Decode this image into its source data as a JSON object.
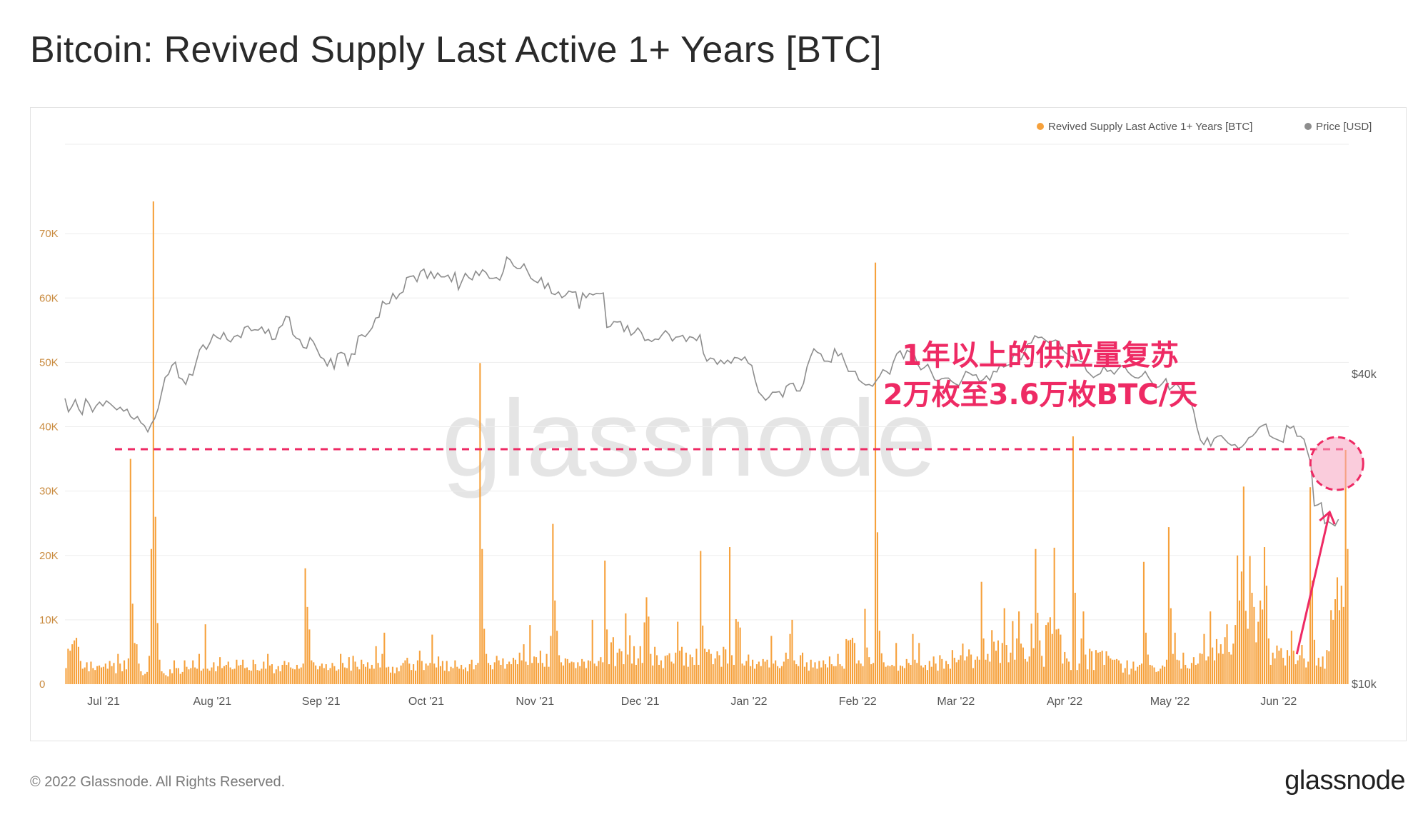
{
  "title": "Bitcoin: Revived Supply Last Active 1+ Years [BTC]",
  "footer": {
    "copyright": "© 2022 Glassnode. All Rights Reserved.",
    "logo": "glassnode"
  },
  "watermark": "glassnode",
  "annotation": {
    "line1": "1年以上的供应量复苏",
    "line2": "2万枚至3.6万枚BTC/天",
    "color": "#ee2a64",
    "threshold_btc": 36500,
    "marker_date": "2022-06-18"
  },
  "colors": {
    "supply": "#f6a13c",
    "price": "#8d8d8d",
    "axis_left": "#c98a3e",
    "axis_right": "#555555",
    "grid": "#ededed",
    "annotation": "#ee2a64"
  },
  "chart_data": {
    "type": "bar",
    "start_date": "2021-06-20",
    "end_date": "2022-06-21",
    "legend_position": "top-right",
    "grid": true,
    "legend": [
      {
        "label": "Revived Supply Last Active 1+ Years [BTC]",
        "color": "#f6a13c"
      },
      {
        "label": "Price [USD]",
        "color": "#8d8d8d"
      }
    ],
    "y_left": {
      "min": 0,
      "max": 80000,
      "ticks": [
        "0",
        "10K",
        "20K",
        "30K",
        "40K",
        "50K",
        "60K",
        "70K"
      ],
      "tick_values": [
        0,
        10000,
        20000,
        30000,
        40000,
        50000,
        60000,
        70000
      ]
    },
    "y_right": {
      "scale": "log",
      "min": 10000,
      "max": 100000,
      "ticks": [
        "$10k",
        "$40k"
      ],
      "tick_values": [
        10000,
        40000
      ]
    },
    "x_ticks": [
      {
        "label": "Jul '21",
        "date": "2021-07-01"
      },
      {
        "label": "Aug '21",
        "date": "2021-08-01"
      },
      {
        "label": "Sep '21",
        "date": "2021-09-01"
      },
      {
        "label": "Oct '21",
        "date": "2021-10-01"
      },
      {
        "label": "Nov '21",
        "date": "2021-11-01"
      },
      {
        "label": "Dec '21",
        "date": "2021-12-01"
      },
      {
        "label": "Jan '22",
        "date": "2022-01-01"
      },
      {
        "label": "Feb '22",
        "date": "2022-02-01"
      },
      {
        "label": "Mar '22",
        "date": "2022-03-01"
      },
      {
        "label": "Apr '22",
        "date": "2022-04-01"
      },
      {
        "label": "May '22",
        "date": "2022-05-01"
      },
      {
        "label": "Jun '22",
        "date": "2022-06-01"
      }
    ],
    "series": [
      {
        "name": "Revived Supply Last Active 1+ Years [BTC]",
        "values": [
          2500,
          5500,
          5200,
          6200,
          6800,
          7200,
          5800,
          3600,
          2400,
          2600,
          3400,
          2000,
          3500,
          2500,
          2200,
          2800,
          2900,
          2600,
          2700,
          3200,
          2400,
          3600,
          2800,
          3300,
          1700,
          4700,
          3200,
          2000,
          3700,
          2300,
          4000,
          35000,
          12500,
          6400,
          6200,
          3200,
          2000,
          1400,
          1600,
          1900,
          4400,
          21000,
          75000,
          26000,
          9500,
          3800,
          2000,
          1700,
          1400,
          1200,
          2300,
          1700,
          3700,
          2500,
          2500,
          1600,
          1900,
          3700,
          2700,
          2300,
          2500,
          3700,
          2600,
          2400,
          4700,
          2100,
          2400,
          9300,
          2400,
          2100,
          2600,
          3400,
          2000,
          2800,
          4200,
          2500,
          2800,
          3000,
          3500,
          2600,
          2300,
          2400,
          3800,
          2900,
          3000,
          3800,
          2500,
          2600,
          2200,
          2100,
          3800,
          3100,
          2200,
          2100,
          2400,
          3500,
          2400,
          4700,
          2900,
          3100,
          1700,
          2300,
          2800,
          2000,
          3000,
          3600,
          3000,
          3400,
          2600,
          2400,
          2300,
          3000,
          2400,
          2600,
          3200,
          18000,
          12000,
          8500,
          3700,
          3400,
          2900,
          2300,
          2800,
          3200,
          2500,
          3100,
          2200,
          2500,
          3300,
          2800,
          2100,
          2300,
          4700,
          3300,
          2600,
          2500,
          4200,
          2100,
          4400,
          3500,
          2700,
          2300,
          3800,
          3100,
          2700,
          3400,
          2400,
          3000,
          2400,
          5900,
          3300,
          2600,
          4700,
          8000,
          2600,
          2700,
          1800,
          2700,
          1700,
          2600,
          2000,
          2900,
          3300,
          3700,
          4100,
          3200,
          2200,
          3100,
          2100,
          3700,
          5200,
          3600,
          2200,
          3200,
          2900,
          3300,
          7700,
          3200,
          2600,
          4300,
          2800,
          3600,
          2100,
          3600,
          2000,
          2700,
          2500,
          3700,
          2700,
          2400,
          3000,
          2300,
          2600,
          2000,
          3100,
          3800,
          2300,
          3000,
          3300,
          49900,
          21000,
          8600,
          4700,
          3300,
          3000,
          2300,
          3400,
          4400,
          3700,
          3000,
          4000,
          2400,
          3100,
          3500,
          3100,
          4100,
          3800,
          3100,
          4900,
          3700,
          6200,
          3500,
          3000,
          9200,
          3300,
          4300,
          4200,
          3300,
          5200,
          3300,
          2700,
          4700,
          2700,
          7500,
          24900,
          13000,
          8300,
          4500,
          3400,
          2900,
          4000,
          3900,
          3300,
          3500,
          3400,
          2500,
          3400,
          2800,
          3900,
          3500,
          2500,
          3700,
          3600,
          10000,
          3200,
          2800,
          3600,
          4200,
          3400,
          19200,
          8500,
          3100,
          6500,
          7300,
          2800,
          4900,
          5500,
          5100,
          3100,
          11000,
          4600,
          7600,
          3200,
          5900,
          3000,
          4000,
          5900,
          3300,
          9600,
          13500,
          10500,
          4700,
          2900,
          5800,
          4500,
          3000,
          3700,
          2500,
          4400,
          4500,
          4800,
          3500,
          3200,
          4900,
          9700,
          5200,
          5800,
          2900,
          4900,
          2700,
          4600,
          4200,
          3000,
          5500,
          3000,
          20700,
          9100,
          5500,
          5000,
          5400,
          4700,
          3100,
          4000,
          5100,
          4500,
          2700,
          5800,
          5400,
          3200,
          21300,
          4500,
          3000,
          10100,
          9700,
          8800,
          3200,
          2900,
          3600,
          4600,
          2800,
          3800,
          2400,
          3100,
          3500,
          2800,
          3900,
          3500,
          3800,
          2600,
          7500,
          3200,
          3700,
          2800,
          2500,
          2800,
          3500,
          4900,
          3900,
          7800,
          10000,
          3700,
          3100,
          2800,
          4500,
          4900,
          2700,
          3400,
          2100,
          3800,
          2600,
          3400,
          2400,
          3600,
          2600,
          3700,
          3100,
          2600,
          4300,
          3100,
          2800,
          2800,
          4700,
          3100,
          2800,
          2400,
          7000,
          6800,
          6900,
          7200,
          6400,
          3200,
          3700,
          3200,
          2800,
          11700,
          5700,
          4200,
          3100,
          3300,
          65500,
          23600,
          8300,
          4800,
          3400,
          2700,
          2900,
          2800,
          3000,
          2800,
          6400,
          2100,
          2900,
          2800,
          2500,
          3900,
          3300,
          3000,
          7800,
          3800,
          3300,
          6400,
          2900,
          2600,
          3000,
          2200,
          3600,
          2700,
          4300,
          3200,
          2100,
          4500,
          3900,
          2400,
          3600,
          3100,
          2400,
          5300,
          4100,
          3400,
          3800,
          4500,
          6300,
          3700,
          4300,
          5400,
          4600,
          2500,
          3800,
          4300,
          3800,
          15900,
          7100,
          3800,
          4700,
          3500,
          8400,
          6600,
          5200,
          6800,
          3300,
          6400,
          11800,
          6100,
          3400,
          4900,
          9800,
          3800,
          7100,
          11300,
          6300,
          5700,
          3900,
          3500,
          4300,
          9400,
          5600,
          21000,
          11100,
          6800,
          4400,
          2700,
          9200,
          9600,
          10400,
          7800,
          21200,
          8500,
          8600,
          7700,
          3200,
          5000,
          4000,
          3500,
          2200,
          38500,
          14200,
          2200,
          3200,
          7100,
          11300,
          4600,
          2300,
          5500,
          5100,
          2200,
          5300,
          4900,
          5000,
          5200,
          3000,
          5100,
          4400,
          4000,
          3800,
          3800,
          3900,
          3700,
          3200,
          1800,
          2500,
          3700,
          1500,
          2400,
          3500,
          2100,
          2700,
          3000,
          3200,
          19000,
          8000,
          4600,
          3000,
          2900,
          2600,
          1900,
          2000,
          2400,
          2900,
          2700,
          3800,
          24400,
          11800,
          4700,
          8000,
          3800,
          3700,
          2400,
          4900,
          3000,
          2500,
          2400,
          3300,
          4200,
          3000,
          3200,
          4800,
          4700,
          7800,
          3700,
          4300,
          11300,
          5700,
          3700,
          7000,
          4800,
          6200,
          4700,
          7300,
          9300,
          5000,
          4600,
          6300,
          9200,
          20000,
          13000,
          17500,
          30700,
          11400,
          8600,
          19900,
          14200,
          12000,
          6500,
          9700,
          13000,
          11600,
          21300,
          15300,
          7100,
          3000,
          4900,
          4000,
          6000,
          5200,
          5600,
          4100,
          2900,
          5300,
          4400,
          8300,
          5200,
          3100,
          3700,
          4500,
          6100,
          4000,
          2600,
          3500,
          30600,
          16100,
          6900,
          2900,
          4100,
          2700,
          4300,
          2400,
          5300,
          5100,
          11500,
          10000,
          13200,
          16600,
          11500,
          15300,
          12000,
          36400,
          21000
        ]
      },
      {
        "name": "Price [USD]",
        "values": [
          35900,
          33800,
          34600,
          35700,
          34200,
          33400,
          35800,
          35000,
          33800,
          34700,
          35300,
          34700,
          35500,
          35100,
          34600,
          34100,
          34500,
          33900,
          34200,
          33100,
          32700,
          33100,
          32200,
          31800,
          30900,
          32000,
          32800,
          34300,
          36800,
          39400,
          40000,
          41600,
          42200,
          39400,
          39100,
          38200,
          40000,
          39800,
          42200,
          44600,
          45600,
          44700,
          46000,
          47800,
          47200,
          46800,
          48200,
          46700,
          46200,
          47300,
          47600,
          47100,
          49300,
          49600,
          48600,
          48800,
          48700,
          49400,
          48000,
          48900,
          46700,
          46800,
          49200,
          49800,
          51800,
          51600,
          47800,
          47000,
          46700,
          45100,
          44900,
          47100,
          46200,
          44700,
          43200,
          42800,
          41500,
          42900,
          41000,
          43800,
          44100,
          43800,
          41600,
          43800,
          43700,
          47400,
          47700,
          47300,
          48200,
          49200,
          51400,
          51600,
          55400,
          54700,
          54900,
          57400,
          56000,
          57300,
          57800,
          61600,
          61900,
          62100,
          60500,
          63300,
          64000,
          61400,
          63300,
          61400,
          62900,
          61800,
          61800,
          62300,
          60500,
          63000,
          58400,
          60600,
          62800,
          61600,
          61000,
          63400,
          62200,
          63800,
          63000,
          61400,
          61400,
          61600,
          60900,
          63300,
          67500,
          66700,
          64900,
          64200,
          64200,
          65500,
          63400,
          61400,
          60700,
          60200,
          61600,
          58700,
          60100,
          57400,
          57100,
          57800,
          56300,
          56900,
          58000,
          57700,
          57800,
          53600,
          57500,
          56300,
          57400,
          57000,
          57400,
          57300,
          57500,
          49300,
          49500,
          50600,
          50500,
          50600,
          48400,
          49700,
          47600,
          48200,
          49200,
          48200,
          46500,
          46700,
          46300,
          46800,
          46700,
          47700,
          48600,
          47800,
          46400,
          47200,
          47300,
          47600,
          46300,
          47300,
          47100,
          46500,
          47700,
          43900,
          42400,
          43000,
          42800,
          41800,
          42600,
          41900,
          42600,
          42000,
          43100,
          43000,
          42600,
          43200,
          42000,
          41600,
          38900,
          36900,
          36300,
          35600,
          36100,
          36900,
          36900,
          37000,
          36100,
          37900,
          38300,
          38400,
          37100,
          37100,
          38400,
          41300,
          43200,
          44800,
          44100,
          43800,
          42400,
          42400,
          42200,
          44800,
          43400,
          43900,
          42100,
          40500,
          40500,
          40500,
          39000,
          38500,
          38100,
          38200,
          37900,
          38800,
          39600,
          40800,
          40500,
          40000,
          42200,
          43800,
          44400,
          42900,
          44500,
          44100,
          43900,
          41900,
          40800,
          41200,
          41800,
          40400,
          39000,
          38800,
          39200,
          39300,
          39300,
          38700,
          38300,
          38000,
          39100,
          40500,
          40200,
          39800,
          39900,
          38700,
          39000,
          39700,
          38900,
          40500,
          40400,
          41800,
          41300,
          41600,
          41800,
          43900,
          43400,
          42700,
          44000,
          45800,
          46000,
          47500,
          47100,
          47200,
          46600,
          46100,
          46300,
          46600,
          46300,
          44600,
          44000,
          43500,
          43200,
          42800,
          42400,
          42200,
          40600,
          40000,
          39400,
          39800,
          40100,
          41400,
          40500,
          40700,
          40000,
          40800,
          41500,
          41400,
          40400,
          39800,
          39400,
          39300,
          39700,
          40500,
          39400,
          38500,
          37700,
          37800,
          38400,
          39200,
          37300,
          37800,
          38400,
          37600,
          36600,
          36000,
          35600,
          34000,
          31500,
          29800,
          29200,
          30100,
          29000,
          30000,
          30300,
          30400,
          29900,
          29400,
          29100,
          29200,
          28700,
          28900,
          29400,
          30100,
          30300,
          30800,
          31500,
          31800,
          32000,
          30400,
          30100,
          29900,
          29700,
          29500,
          31800,
          31400,
          31700,
          30300,
          30300,
          29900,
          28300,
          26800,
          22200,
          22300,
          22500,
          20500,
          20700,
          20500,
          20300,
          20900
        ]
      }
    ]
  }
}
